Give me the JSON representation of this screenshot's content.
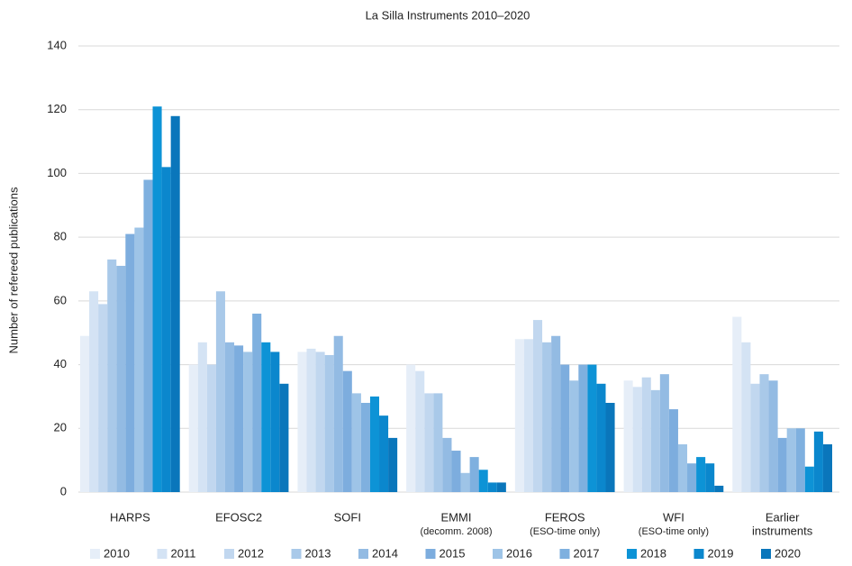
{
  "chart_data": {
    "type": "bar",
    "title": "La Silla Instruments 2010–2020",
    "y_label": "Number of refereed publications",
    "categories": [
      [
        "HARPS"
      ],
      [
        "EFOSC2"
      ],
      [
        "SOFI"
      ],
      [
        "EMMI",
        "(decomm. 2008)"
      ],
      [
        "FEROS",
        "(ESO-time only)"
      ],
      [
        "WFI",
        "(ESO-time only)"
      ],
      [
        "Earlier",
        "instruments"
      ]
    ],
    "series": [
      {
        "name": "2010",
        "color": "#e6eef8",
        "values": [
          49,
          40,
          44,
          40,
          48,
          35,
          55
        ]
      },
      {
        "name": "2011",
        "color": "#d4e3f4",
        "values": [
          63,
          47,
          45,
          38,
          48,
          33,
          47
        ]
      },
      {
        "name": "2012",
        "color": "#c1d7ef",
        "values": [
          59,
          40,
          44,
          31,
          54,
          36,
          34
        ]
      },
      {
        "name": "2013",
        "color": "#a9c9e9",
        "values": [
          73,
          63,
          43,
          31,
          47,
          32,
          37
        ]
      },
      {
        "name": "2014",
        "color": "#93bbe3",
        "values": [
          71,
          47,
          49,
          17,
          49,
          37,
          35
        ]
      },
      {
        "name": "2015",
        "color": "#7dadde",
        "values": [
          81,
          46,
          38,
          13,
          40,
          26,
          17
        ]
      },
      {
        "name": "2016",
        "color": "#9ec4e7",
        "values": [
          83,
          44,
          31,
          6,
          35,
          15,
          20
        ]
      },
      {
        "name": "2017",
        "color": "#7fb0df",
        "values": [
          98,
          56,
          28,
          11,
          40,
          9,
          20
        ]
      },
      {
        "name": "2018",
        "color": "#0d93d6",
        "values": [
          121,
          47,
          30,
          7,
          40,
          11,
          8
        ]
      },
      {
        "name": "2019",
        "color": "#0b87cd",
        "values": [
          102,
          44,
          24,
          3,
          34,
          9,
          19
        ]
      },
      {
        "name": "2020",
        "color": "#0a76bb",
        "values": [
          118,
          34,
          17,
          3,
          28,
          2,
          15
        ]
      }
    ],
    "ylim": [
      0,
      140
    ],
    "yticks": [
      0,
      20,
      40,
      60,
      80,
      100,
      120,
      140
    ],
    "grid": true,
    "legend": "bottom"
  }
}
